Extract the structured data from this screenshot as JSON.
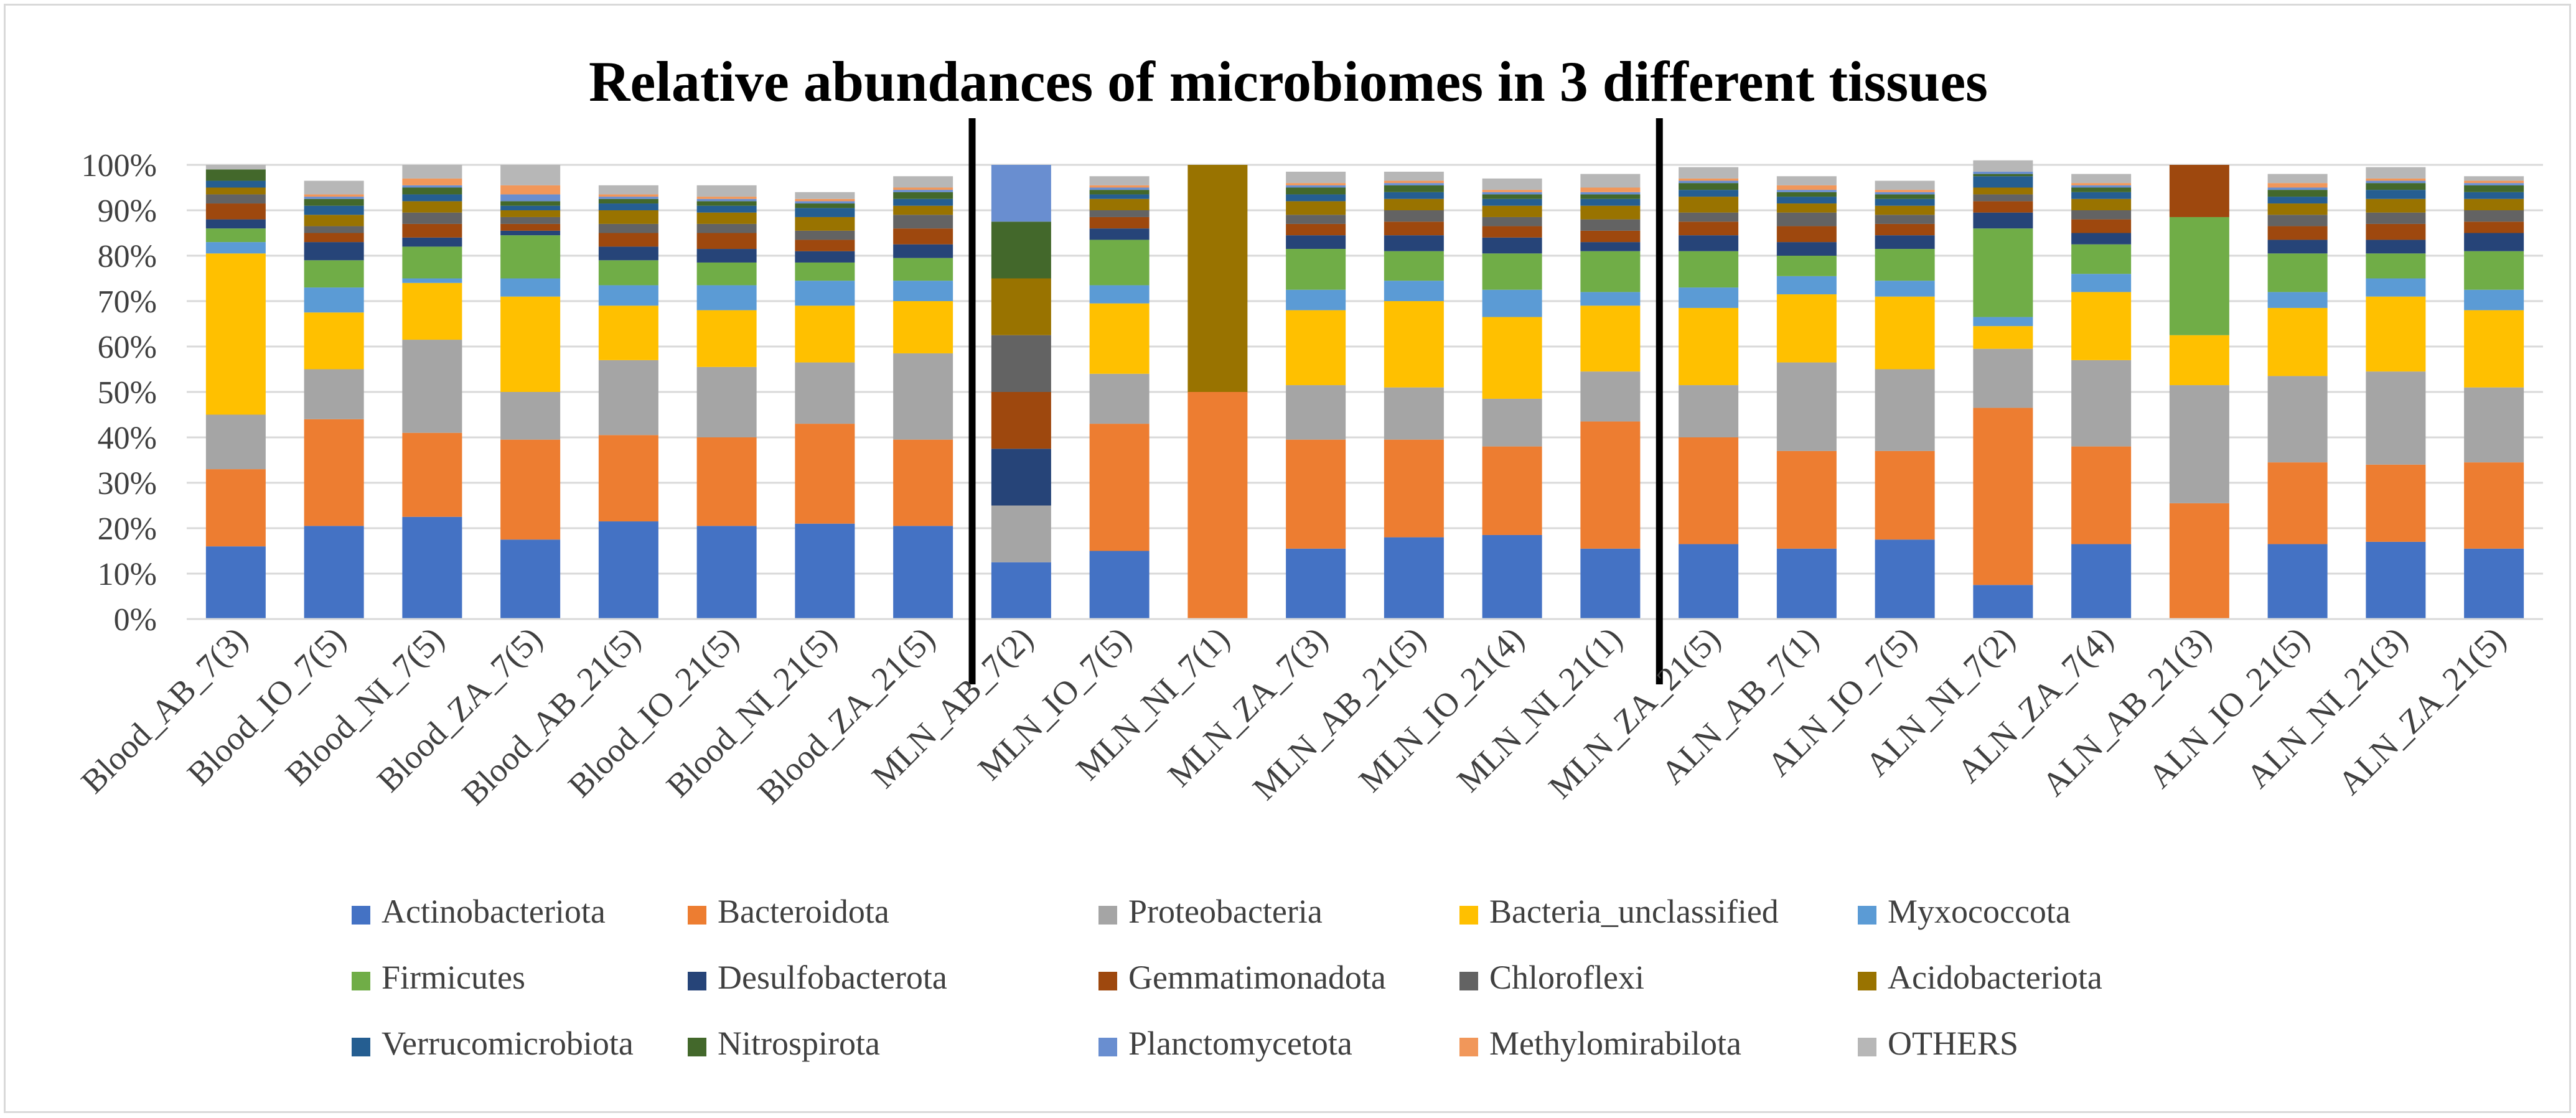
{
  "chart_data": {
    "type": "bar",
    "stacked": true,
    "normalized": true,
    "title": "Relative abundances of microbiomes in 3 different tissues",
    "xlabel": "",
    "ylabel": "",
    "ylim": [
      0,
      100
    ],
    "y_ticks": [
      "0%",
      "10%",
      "20%",
      "30%",
      "40%",
      "50%",
      "60%",
      "70%",
      "80%",
      "90%",
      "100%"
    ],
    "legend_position": "bottom",
    "gridlines": true,
    "group_dividers_after": [
      8,
      15
    ],
    "categories": [
      "Blood_AB_7(3)",
      "Blood_IO_7(5)",
      "Blood_NI_7(5)",
      "Blood_ZA_7(5)",
      "Blood_AB_21(5)",
      "Blood_IO_21(5)",
      "Blood_NI_21(5)",
      "Blood_ZA_21(5)",
      "MLN_AB_7(2)",
      "MLN_IO_7(5)",
      "MLN_NI_7(1)",
      "MLN_ZA_7(3)",
      "MLN_AB_21(5)",
      "MLN_IO_21(4)",
      "MLN_NI_21(1)",
      "MLN_ZA_21(5)",
      "ALN_AB_7(1)",
      "ALN_IO_7(5)",
      "ALN_NI_7(2)",
      "ALN_ZA_7(4)",
      "ALN_AB_21(3)",
      "ALN_IO_21(5)",
      "ALN_NI_21(3)",
      "ALN_ZA_21(5)"
    ],
    "series": [
      {
        "name": "Actinobacteriota",
        "color": "#4472c4",
        "values": [
          16,
          20.5,
          22.5,
          17.5,
          21.5,
          20.5,
          21,
          20.5,
          12.5,
          15,
          0,
          15.5,
          18,
          18.5,
          15.5,
          16.5,
          15.5,
          17.5,
          7.5,
          16.5,
          0,
          16.5,
          17,
          15.5
        ]
      },
      {
        "name": "Bacteroidota",
        "color": "#ed7d31",
        "values": [
          17,
          23.5,
          18.5,
          22,
          19,
          19.5,
          22,
          19,
          0,
          28,
          50,
          24,
          21.5,
          19.5,
          28,
          23.5,
          21.5,
          19.5,
          39,
          21.5,
          25.5,
          18,
          17,
          19
        ]
      },
      {
        "name": "Proteobacteria",
        "color": "#a5a5a5",
        "values": [
          12,
          11,
          20.5,
          10.5,
          16.5,
          15.5,
          13.5,
          19,
          12.5,
          11,
          0,
          12,
          11.5,
          10.5,
          11,
          11.5,
          19.5,
          18,
          13,
          19,
          26,
          19,
          20.5,
          16.5
        ]
      },
      {
        "name": "Bacteria_unclassified",
        "color": "#ffc000",
        "values": [
          35.5,
          12.5,
          12.5,
          21,
          12,
          12.5,
          12.5,
          11.5,
          0,
          15.5,
          0,
          16.5,
          19,
          18,
          14.5,
          17,
          15,
          16,
          5,
          15,
          11,
          15,
          16.5,
          17
        ]
      },
      {
        "name": "Myxococcota",
        "color": "#5b9bd5",
        "values": [
          2.5,
          5.5,
          1,
          4,
          4.5,
          5.5,
          5.5,
          4.5,
          0,
          4,
          0,
          4.5,
          4.5,
          6,
          3,
          4.5,
          4,
          3.5,
          2,
          4,
          0,
          3.5,
          4,
          4.5
        ]
      },
      {
        "name": "Firmicutes",
        "color": "#70ad47",
        "values": [
          3,
          6,
          7,
          9.5,
          5.5,
          5,
          4,
          5,
          0,
          10,
          0,
          9,
          6.5,
          8,
          9,
          8,
          4.5,
          7,
          19.5,
          6.5,
          26,
          8.5,
          5.5,
          8.5
        ]
      },
      {
        "name": "Desulfobacterota",
        "color": "#264478",
        "values": [
          2,
          4,
          2,
          1,
          3,
          3,
          2.5,
          3,
          12.5,
          2.5,
          0,
          3,
          3.5,
          3.5,
          2,
          3.5,
          3,
          3,
          3.5,
          2.5,
          0,
          3,
          3,
          4
        ]
      },
      {
        "name": "Gemmatimonadota",
        "color": "#9e480e",
        "values": [
          3.5,
          2,
          3,
          1.5,
          3,
          3.5,
          2.5,
          3.5,
          12.5,
          2.5,
          0,
          2.5,
          3,
          2.5,
          2.5,
          3,
          3.5,
          2.5,
          2.5,
          3,
          11.5,
          3,
          3.5,
          2.5
        ]
      },
      {
        "name": "Chloroflexi",
        "color": "#636363",
        "values": [
          2,
          1.5,
          2.5,
          1.5,
          2,
          2,
          2,
          3,
          12.5,
          1.5,
          0,
          2,
          2.5,
          2,
          2.5,
          2,
          3,
          2,
          1.5,
          2,
          0,
          2.5,
          2.5,
          2.5
        ]
      },
      {
        "name": "Acidobacteriota",
        "color": "#997300",
        "values": [
          1.5,
          2.5,
          2.5,
          1.5,
          3,
          2.5,
          3,
          2,
          12.5,
          2.5,
          50,
          3,
          2.5,
          2.5,
          3,
          3.5,
          2,
          2,
          1.5,
          2.5,
          0,
          2.5,
          3,
          2.5
        ]
      },
      {
        "name": "Verrucomicrobiota",
        "color": "#255e91",
        "values": [
          1.5,
          2,
          1.5,
          1,
          1.5,
          1.5,
          2,
          1.5,
          0,
          1,
          0,
          1.5,
          1.5,
          1.5,
          1.5,
          1.5,
          1.5,
          1.5,
          2.5,
          1.5,
          0,
          1.5,
          2,
          1.5
        ]
      },
      {
        "name": "Nitrospirota",
        "color": "#43682b",
        "values": [
          2.5,
          1.5,
          1.5,
          1,
          1,
          1,
          1,
          1.5,
          12.5,
          1,
          0,
          1.5,
          1.5,
          1,
          1,
          1.5,
          1,
          1,
          0.5,
          1,
          0,
          1.5,
          1.5,
          1.5
        ]
      },
      {
        "name": "Planctomycetota",
        "color": "#698ed0",
        "values": [
          0,
          0.5,
          0.5,
          1.5,
          0.5,
          0.5,
          0.5,
          0.5,
          12.5,
          0.5,
          0,
          0.5,
          0.5,
          0.5,
          0.5,
          0.5,
          0.5,
          0.5,
          0.5,
          0.5,
          0,
          0.5,
          0.5,
          0.5
        ]
      },
      {
        "name": "Methylomirabilota",
        "color": "#f1975a",
        "values": [
          0,
          0.5,
          1.5,
          2,
          0.5,
          0.5,
          0.5,
          0.5,
          0,
          0.5,
          0,
          0.5,
          0.5,
          0.5,
          1,
          0.5,
          1,
          0.5,
          0,
          0.5,
          0,
          1,
          0.5,
          0.5
        ]
      },
      {
        "name": "OTHERS",
        "color": "#b7b7b7",
        "values": [
          1,
          3,
          3,
          4.5,
          2,
          2.5,
          1.5,
          2.5,
          0,
          2,
          0,
          2.5,
          2,
          2.5,
          3,
          2.5,
          2,
          2,
          2.5,
          2,
          0,
          2,
          2.5,
          1
        ]
      }
    ]
  }
}
